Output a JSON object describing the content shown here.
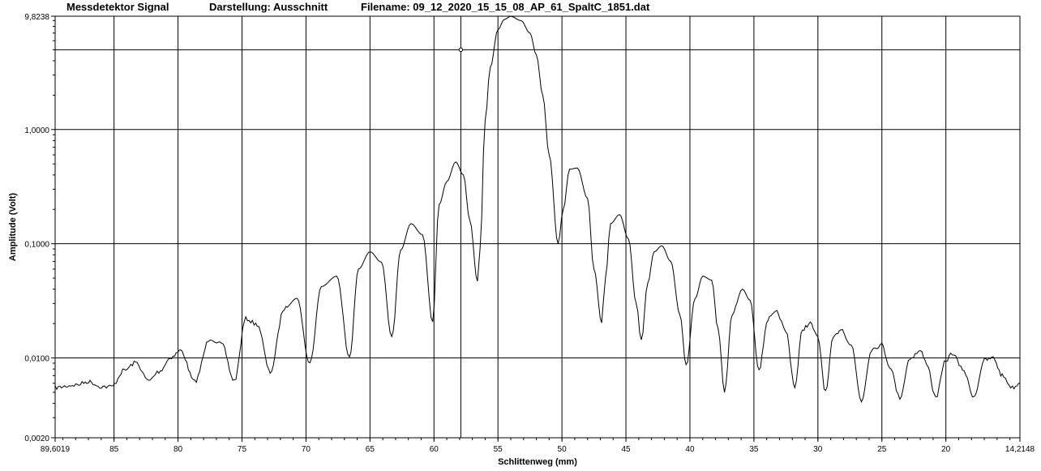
{
  "header": {
    "title": "Messdetektor Signal",
    "view": "Darstellung: Ausschnitt",
    "filename": "Filename: 09_12_2020_15_15_08_AP_61_SpaltC_1851.dat"
  },
  "chart_data": {
    "type": "line",
    "title": "Messdetektor Signal",
    "xlabel": "Schlittenweg (mm)",
    "ylabel": "Amplitude (Volt)",
    "xlim": [
      89.6019,
      14.2148
    ],
    "x_reversed": true,
    "ylim": [
      0.002,
      9.8238
    ],
    "y_scale": "log",
    "grid": true,
    "x_tick_labels": [
      "89,6019",
      "85",
      "80",
      "75",
      "70",
      "65",
      "60",
      "55",
      "50",
      "45",
      "40",
      "35",
      "30",
      "25",
      "20",
      "14,2148"
    ],
    "x_tick_values": [
      89.6019,
      85,
      80,
      75,
      70,
      65,
      60,
      55,
      50,
      45,
      40,
      35,
      30,
      25,
      20,
      14.2148
    ],
    "y_tick_labels": [
      "9,8238",
      "1,0000",
      "0,1000",
      "0,0100",
      "0,0020"
    ],
    "y_tick_values": [
      9.8238,
      1.0,
      0.1,
      0.01,
      0.002
    ],
    "cursor": {
      "x": 57.9,
      "y": 5.0
    },
    "series": [
      {
        "color": "#000000",
        "x": [
          89.6,
          88.0,
          87.0,
          86.0,
          85.2,
          84.2,
          83.3,
          82.3,
          81.5,
          80.5,
          79.8,
          78.7,
          77.5,
          76.6,
          75.6,
          74.7,
          73.8,
          72.8,
          71.7,
          70.7,
          69.7,
          68.8,
          67.6,
          66.6,
          65.9,
          65.0,
          64.1,
          63.3,
          62.6,
          61.8,
          60.9,
          60.1,
          59.6,
          59.0,
          58.3,
          57.7,
          57.2,
          56.6,
          56.4,
          56.0,
          55.6,
          55.0,
          54.5,
          54.0,
          53.2,
          52.5,
          52.0,
          51.5,
          51.0,
          50.3,
          49.9,
          49.4,
          48.8,
          48.0,
          47.5,
          46.9,
          46.6,
          46.2,
          45.5,
          44.8,
          44.2,
          43.8,
          43.3,
          42.8,
          42.2,
          41.5,
          40.8,
          40.3,
          39.6,
          39.0,
          38.3,
          37.8,
          37.3,
          36.7,
          35.9,
          35.3,
          34.6,
          33.9,
          33.2,
          32.5,
          31.8,
          31.2,
          30.6,
          30.0,
          29.4,
          28.8,
          28.2,
          27.4,
          26.6,
          25.8,
          25.0,
          24.4,
          23.6,
          22.8,
          22.0,
          21.5,
          20.8,
          20.0,
          19.5,
          18.7,
          17.8,
          17.0,
          16.3,
          15.6,
          14.8,
          14.2
        ],
        "y": [
          0.0055,
          0.0058,
          0.0062,
          0.0056,
          0.0056,
          0.0078,
          0.0091,
          0.0063,
          0.0076,
          0.0102,
          0.0116,
          0.0062,
          0.0148,
          0.0132,
          0.0063,
          0.022,
          0.0196,
          0.0075,
          0.027,
          0.0333,
          0.009,
          0.0422,
          0.052,
          0.0101,
          0.06,
          0.085,
          0.069,
          0.015,
          0.088,
          0.15,
          0.12,
          0.021,
          0.22,
          0.35,
          0.52,
          0.4,
          0.16,
          0.047,
          0.09,
          1.2,
          3.5,
          7.5,
          9.2,
          9.8,
          9.0,
          7.0,
          4.5,
          2.0,
          0.6,
          0.1,
          0.2,
          0.45,
          0.46,
          0.25,
          0.06,
          0.021,
          0.05,
          0.15,
          0.18,
          0.11,
          0.03,
          0.014,
          0.045,
          0.085,
          0.096,
          0.07,
          0.025,
          0.0085,
          0.033,
          0.052,
          0.048,
          0.018,
          0.005,
          0.024,
          0.04,
          0.032,
          0.008,
          0.022,
          0.025,
          0.017,
          0.0056,
          0.018,
          0.02,
          0.015,
          0.005,
          0.015,
          0.018,
          0.013,
          0.0042,
          0.012,
          0.013,
          0.0085,
          0.0045,
          0.01,
          0.0115,
          0.009,
          0.0045,
          0.0095,
          0.011,
          0.008,
          0.0046,
          0.0095,
          0.01,
          0.007,
          0.0055,
          0.006
        ]
      }
    ]
  }
}
